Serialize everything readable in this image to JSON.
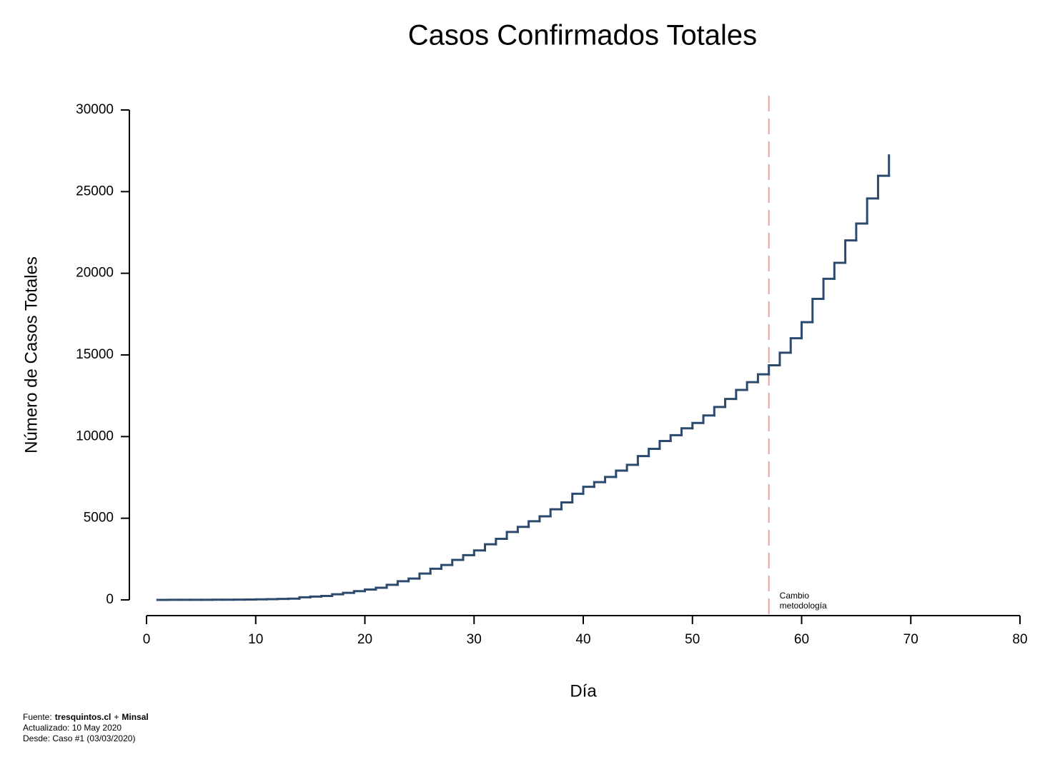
{
  "chart_data": {
    "type": "step",
    "title": "Casos Confirmados Totales",
    "x_label": "Día",
    "y_label": "Número de Casos Totales",
    "x": [
      1,
      2,
      3,
      4,
      5,
      6,
      7,
      8,
      9,
      10,
      11,
      12,
      13,
      14,
      15,
      16,
      17,
      18,
      19,
      20,
      21,
      22,
      23,
      24,
      25,
      26,
      27,
      28,
      29,
      30,
      31,
      32,
      33,
      34,
      35,
      36,
      37,
      38,
      39,
      40,
      41,
      42,
      43,
      44,
      45,
      46,
      47,
      48,
      49,
      50,
      51,
      52,
      53,
      54,
      55,
      56,
      57,
      58,
      59,
      60,
      61,
      62,
      63,
      64,
      65,
      66,
      67,
      68
    ],
    "series": [
      {
        "name": "Casos",
        "color": "#2c4a6e",
        "values": [
          1,
          3,
          4,
          5,
          7,
          10,
          13,
          17,
          23,
          33,
          43,
          61,
          75,
          156,
          201,
          238,
          342,
          434,
          537,
          632,
          746,
          922,
          1142,
          1306,
          1610,
          1909,
          2139,
          2449,
          2738,
          3031,
          3404,
          3737,
          4161,
          4471,
          4815,
          5116,
          5546,
          5972,
          6501,
          6927,
          7213,
          7525,
          7917,
          8273,
          8807,
          9252,
          9730,
          10088,
          10507,
          10832,
          11296,
          11812,
          12306,
          12858,
          13331,
          13813,
          14365,
          15135,
          16023,
          17008,
          18435,
          19663,
          20643,
          22016,
          23048,
          24581,
          25972,
          27219
        ]
      }
    ],
    "xlim": [
      0,
      80
    ],
    "xticks": [
      0,
      10,
      20,
      30,
      40,
      50,
      60,
      70,
      80
    ],
    "ylim": [
      0,
      30000
    ],
    "yticks": [
      0,
      5000,
      10000,
      15000,
      20000,
      25000,
      30000
    ],
    "annotation": {
      "x": 57,
      "color": "#e8a3a3",
      "text": [
        "Cambio",
        "metodología"
      ]
    },
    "footer": {
      "source": [
        {
          "text": "Fuente:",
          "bold": false
        },
        {
          "text": "tresquintos.cl",
          "bold": true
        },
        {
          "text": "+",
          "bold": false
        },
        {
          "text": "Minsal",
          "bold": true
        }
      ],
      "updated": "Actualizado: 10 May 2020",
      "since": "Desde: Caso #1  (03/03/2020)"
    }
  }
}
